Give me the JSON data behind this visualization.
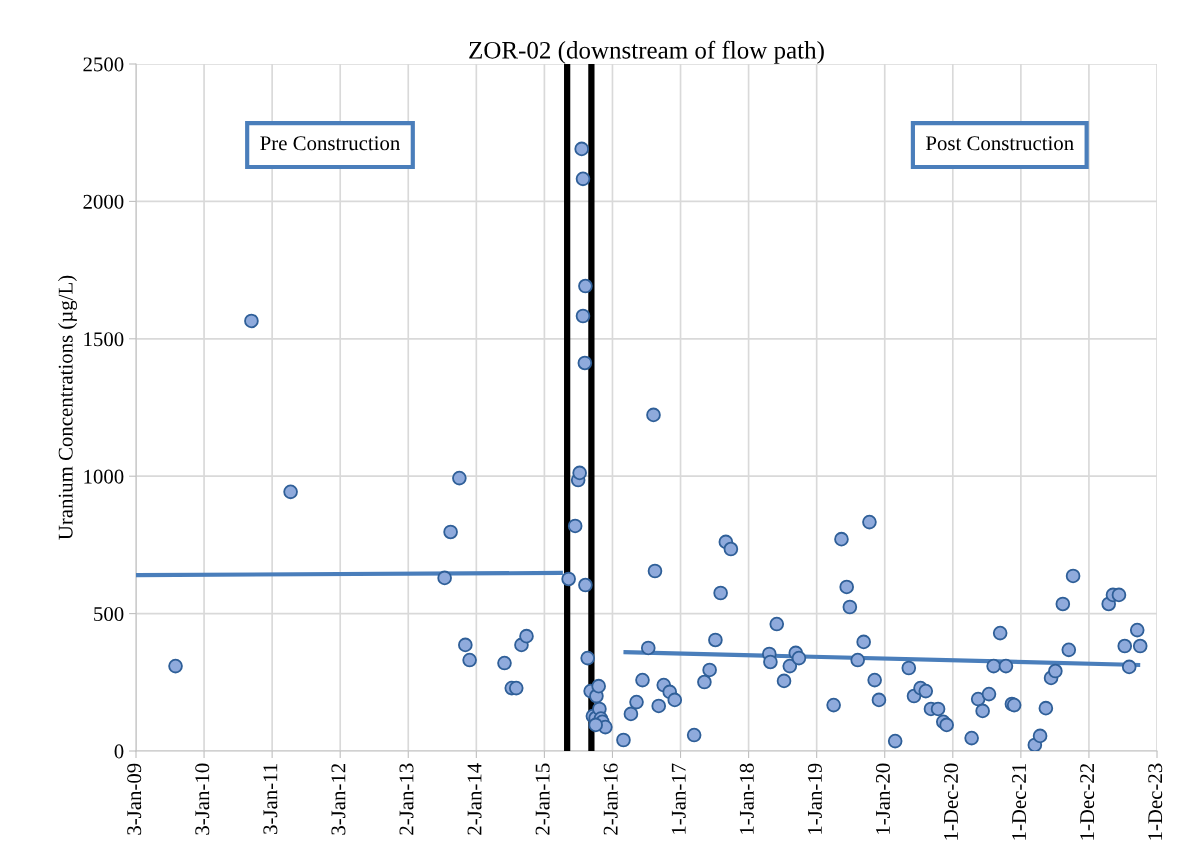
{
  "chart_data": {
    "type": "scatter",
    "title": "ZOR-02 (downstream of flow path)",
    "ylabel": "Uranium Concentrations (µg/L)",
    "annotations": [
      "Pre Construction",
      "Post Construction"
    ],
    "xlim": [
      "2009-01-03",
      "2023-12-31"
    ],
    "xticks": [
      {
        "value": "2009-01-03",
        "label": "3-Jan-09"
      },
      {
        "value": "2010-01-03",
        "label": "3-Jan-10"
      },
      {
        "value": "2011-01-03",
        "label": "3-Jan-11"
      },
      {
        "value": "2012-01-03",
        "label": "3-Jan-12"
      },
      {
        "value": "2013-01-02",
        "label": "2-Jan-13"
      },
      {
        "value": "2014-01-02",
        "label": "2-Jan-14"
      },
      {
        "value": "2015-01-02",
        "label": "2-Jan-15"
      },
      {
        "value": "2016-01-02",
        "label": "2-Jan-16"
      },
      {
        "value": "2017-01-01",
        "label": "1-Jan-17"
      },
      {
        "value": "2018-01-01",
        "label": "1-Jan-18"
      },
      {
        "value": "2019-01-01",
        "label": "1-Jan-19"
      },
      {
        "value": "2020-01-01",
        "label": "1-Jan-20"
      },
      {
        "value": "2020-12-31",
        "label": "1-Dec-20"
      },
      {
        "value": "2021-12-31",
        "label": "1-Dec-21"
      },
      {
        "value": "2022-12-31",
        "label": "1-Dec-22"
      },
      {
        "value": "2023-12-31",
        "label": "1-Dec-23"
      }
    ],
    "ylim": [
      0,
      2500
    ],
    "yticks": [
      0,
      500,
      1000,
      1500,
      2000,
      2500
    ],
    "grid": true,
    "series": [
      {
        "color": "#8faadc",
        "marker": "circle",
        "x": [
          "2009-08-03",
          "2010-09-14",
          "2011-04-12",
          "2013-07-16",
          "2013-08-17",
          "2013-10-03",
          "2013-11-04",
          "2013-11-27",
          "2014-06-02",
          "2014-07-11",
          "2014-08-04",
          "2014-09-01",
          "2014-09-28",
          "2015-05-12",
          "2015-06-16",
          "2015-07-02",
          "2015-07-10",
          "2015-07-21",
          "2015-07-28",
          "2015-08-10",
          "2015-07-28",
          "2015-08-07",
          "2015-08-10",
          "2015-08-22",
          "2015-09-07",
          "2015-10-08",
          "2015-10-20",
          "2015-09-19",
          "2015-10-04",
          "2015-10-24",
          "2015-11-01",
          "2015-11-09",
          "2015-11-25",
          "2015-10-04",
          "2016-03-01",
          "2016-04-10",
          "2016-05-10",
          "2016-06-11",
          "2016-07-12",
          "2016-08-09",
          "2016-08-17",
          "2016-09-06",
          "2016-10-03",
          "2016-11-04",
          "2016-12-01",
          "2017-03-15",
          "2017-05-09",
          "2017-06-06",
          "2017-07-07",
          "2017-08-04",
          "2017-09-01",
          "2017-09-28",
          "2018-04-22",
          "2018-04-28",
          "2018-06-01",
          "2018-07-10",
          "2018-08-10",
          "2018-09-11",
          "2018-09-28",
          "2019-04-02",
          "2019-05-14",
          "2019-06-11",
          "2019-06-28",
          "2019-08-09",
          "2019-09-10",
          "2019-10-11",
          "2019-11-08",
          "2019-12-01",
          "2020-02-26",
          "2020-05-09",
          "2020-06-06",
          "2020-07-11",
          "2020-08-08",
          "2020-09-05",
          "2020-10-13",
          "2020-11-10",
          "2020-11-28",
          "2021-04-11",
          "2021-05-16",
          "2021-06-09",
          "2021-07-13",
          "2021-08-07",
          "2021-09-11",
          "2021-10-12",
          "2021-11-13",
          "2021-11-25",
          "2022-03-16",
          "2022-04-13",
          "2022-05-14",
          "2022-06-11",
          "2022-07-04",
          "2022-08-13",
          "2022-09-14",
          "2022-10-07",
          "2023-04-16",
          "2023-05-09",
          "2023-06-10",
          "2023-07-11",
          "2023-08-04",
          "2023-09-16",
          "2023-10-02"
        ],
        "values": [
          309,
          1565,
          943,
          630,
          797,
          993,
          386,
          331,
          320,
          229,
          229,
          386,
          418,
          626,
          819,
          986,
          1012,
          2191,
          2082,
          1692,
          1583,
          1412,
          604,
          338,
          218,
          200,
          236,
          127,
          120,
          153,
          118,
          106,
          87,
          95,
          40,
          135,
          178,
          258,
          375,
          1223,
          655,
          164,
          240,
          215,
          186,
          58,
          251,
          295,
          404,
          575,
          761,
          735,
          353,
          324,
          462,
          255,
          309,
          357,
          338,
          167,
          771,
          597,
          524,
          331,
          397,
          833,
          258,
          186,
          36,
          302,
          200,
          229,
          218,
          153,
          153,
          106,
          95,
          47,
          189,
          146,
          207,
          309,
          429,
          309,
          171,
          167,
          22,
          55,
          156,
          266,
          291,
          535,
          368,
          637,
          535,
          568,
          568,
          382,
          306,
          440,
          382
        ]
      },
      {
        "type": "line",
        "color": "#4a7ebb",
        "x": [
          "2009-01-03",
          "2015-04-11"
        ],
        "values": [
          640,
          648
        ]
      },
      {
        "type": "line",
        "color": "#4a7ebb",
        "x": [
          "2016-03-01",
          "2023-10-02"
        ],
        "values": [
          360,
          313
        ]
      }
    ],
    "ref_lines": [
      {
        "axis": "x",
        "value": "2015-05-04",
        "color": "#000000"
      },
      {
        "axis": "x",
        "value": "2015-09-11",
        "color": "#000000"
      }
    ]
  }
}
